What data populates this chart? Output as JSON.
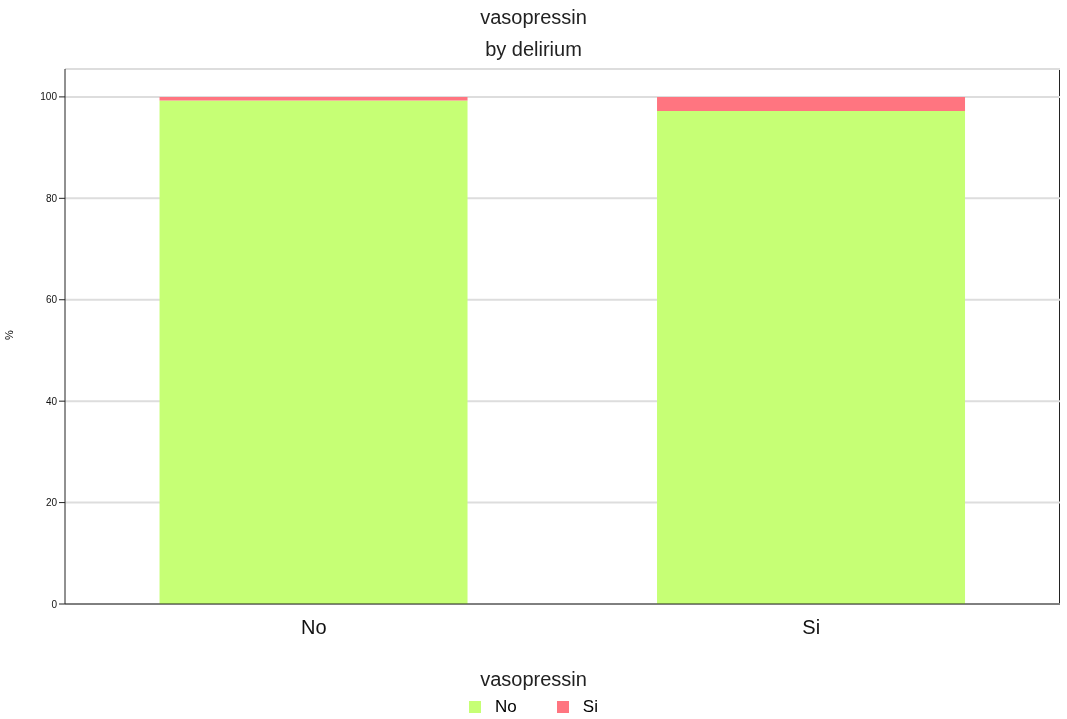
{
  "chart_data": {
    "type": "bar",
    "title": "vasopressin",
    "subtitle": "by delirium",
    "ylabel": "%",
    "legend_title": "vasopressin",
    "categories": [
      "No",
      "Si"
    ],
    "stacked": true,
    "series": [
      {
        "name": "No",
        "color": "#c6ff75",
        "values": [
          99.3,
          97.2
        ]
      },
      {
        "name": "Si",
        "color": "#ff7580",
        "values": [
          0.7,
          2.8
        ]
      }
    ],
    "ylim": [
      0,
      105.5
    ],
    "yticks": [
      0,
      20,
      40,
      60,
      80,
      100
    ],
    "grid": "y",
    "legend": "bottom"
  }
}
